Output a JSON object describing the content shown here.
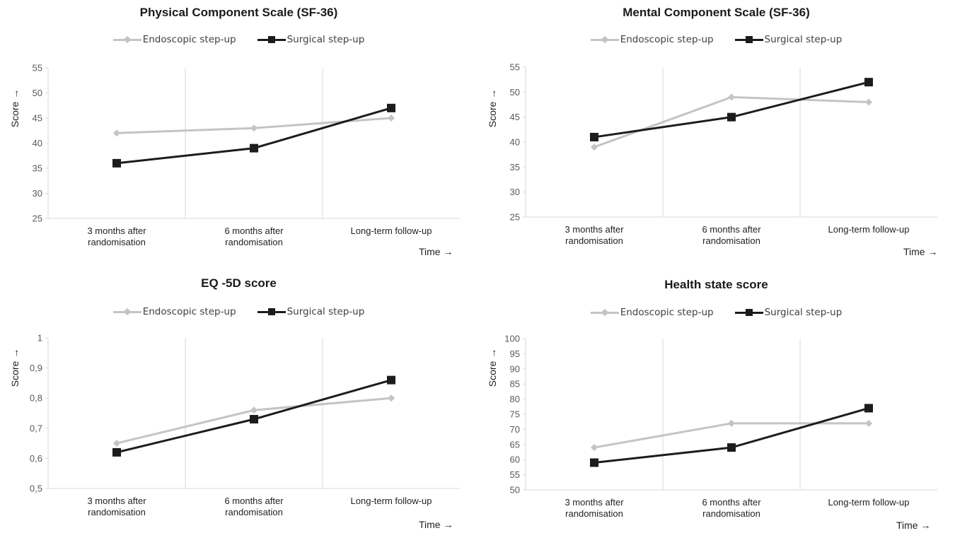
{
  "legend": {
    "endoscopic": "Endoscopic step-up",
    "surgical": "Surgical step-up"
  },
  "colors": {
    "endoscopic": "#c4c4c4",
    "surgical": "#1c1c1c",
    "grid": "#d9d9d9"
  },
  "chart_data": [
    {
      "type": "line",
      "title": "Physical Component Scale (SF-36)",
      "ylabel": "Score →",
      "xlabel": "Time →",
      "categories": [
        [
          "3 months after",
          "randomisation"
        ],
        [
          "6 months after",
          "randomisation"
        ],
        [
          "Long-term follow-up"
        ]
      ],
      "ylim": [
        25,
        55
      ],
      "yticks": [
        "25",
        "30",
        "35",
        "40",
        "45",
        "50",
        "55"
      ],
      "series": [
        {
          "name": "Endoscopic step-up",
          "values": [
            42,
            43,
            45
          ]
        },
        {
          "name": "Surgical step-up",
          "values": [
            36,
            39,
            47
          ]
        }
      ]
    },
    {
      "type": "line",
      "title": "Mental Component Scale (SF-36)",
      "ylabel": "Score →",
      "xlabel": "Time →",
      "categories": [
        [
          "3 months after",
          "randomisation"
        ],
        [
          "6 months after",
          "randomisation"
        ],
        [
          "Long-term follow-up"
        ]
      ],
      "ylim": [
        25,
        55
      ],
      "yticks": [
        "25",
        "30",
        "35",
        "40",
        "45",
        "50",
        "55"
      ],
      "series": [
        {
          "name": "Endoscopic step-up",
          "values": [
            39,
            49,
            48
          ]
        },
        {
          "name": "Surgical step-up",
          "values": [
            41,
            45,
            52
          ]
        }
      ]
    },
    {
      "type": "line",
      "title": "EQ -5D score",
      "ylabel": "Score →",
      "xlabel": "Time →",
      "categories": [
        [
          "3 months after",
          "randomisation"
        ],
        [
          "6 months after",
          "randomisation"
        ],
        [
          "Long-term follow-up"
        ]
      ],
      "ylim": [
        0.5,
        1.0
      ],
      "yticks": [
        "0,5",
        "0,6",
        "0,7",
        "0,8",
        "0,9",
        "1"
      ],
      "series": [
        {
          "name": "Endoscopic step-up",
          "values": [
            0.65,
            0.76,
            0.8
          ]
        },
        {
          "name": "Surgical step-up",
          "values": [
            0.62,
            0.73,
            0.86
          ]
        }
      ]
    },
    {
      "type": "line",
      "title": "Health state score",
      "ylabel": "Score →",
      "xlabel": "Time →",
      "categories": [
        [
          "3 months after",
          "randomisation"
        ],
        [
          "6 months after",
          "randomisation"
        ],
        [
          "Long-term follow-up"
        ]
      ],
      "ylim": [
        50,
        100
      ],
      "yticks": [
        "50",
        "55",
        "60",
        "65",
        "70",
        "75",
        "80",
        "85",
        "90",
        "95",
        "100"
      ],
      "series": [
        {
          "name": "Endoscopic step-up",
          "values": [
            64,
            72,
            72
          ]
        },
        {
          "name": "Surgical step-up",
          "values": [
            59,
            64,
            77
          ]
        }
      ]
    }
  ]
}
